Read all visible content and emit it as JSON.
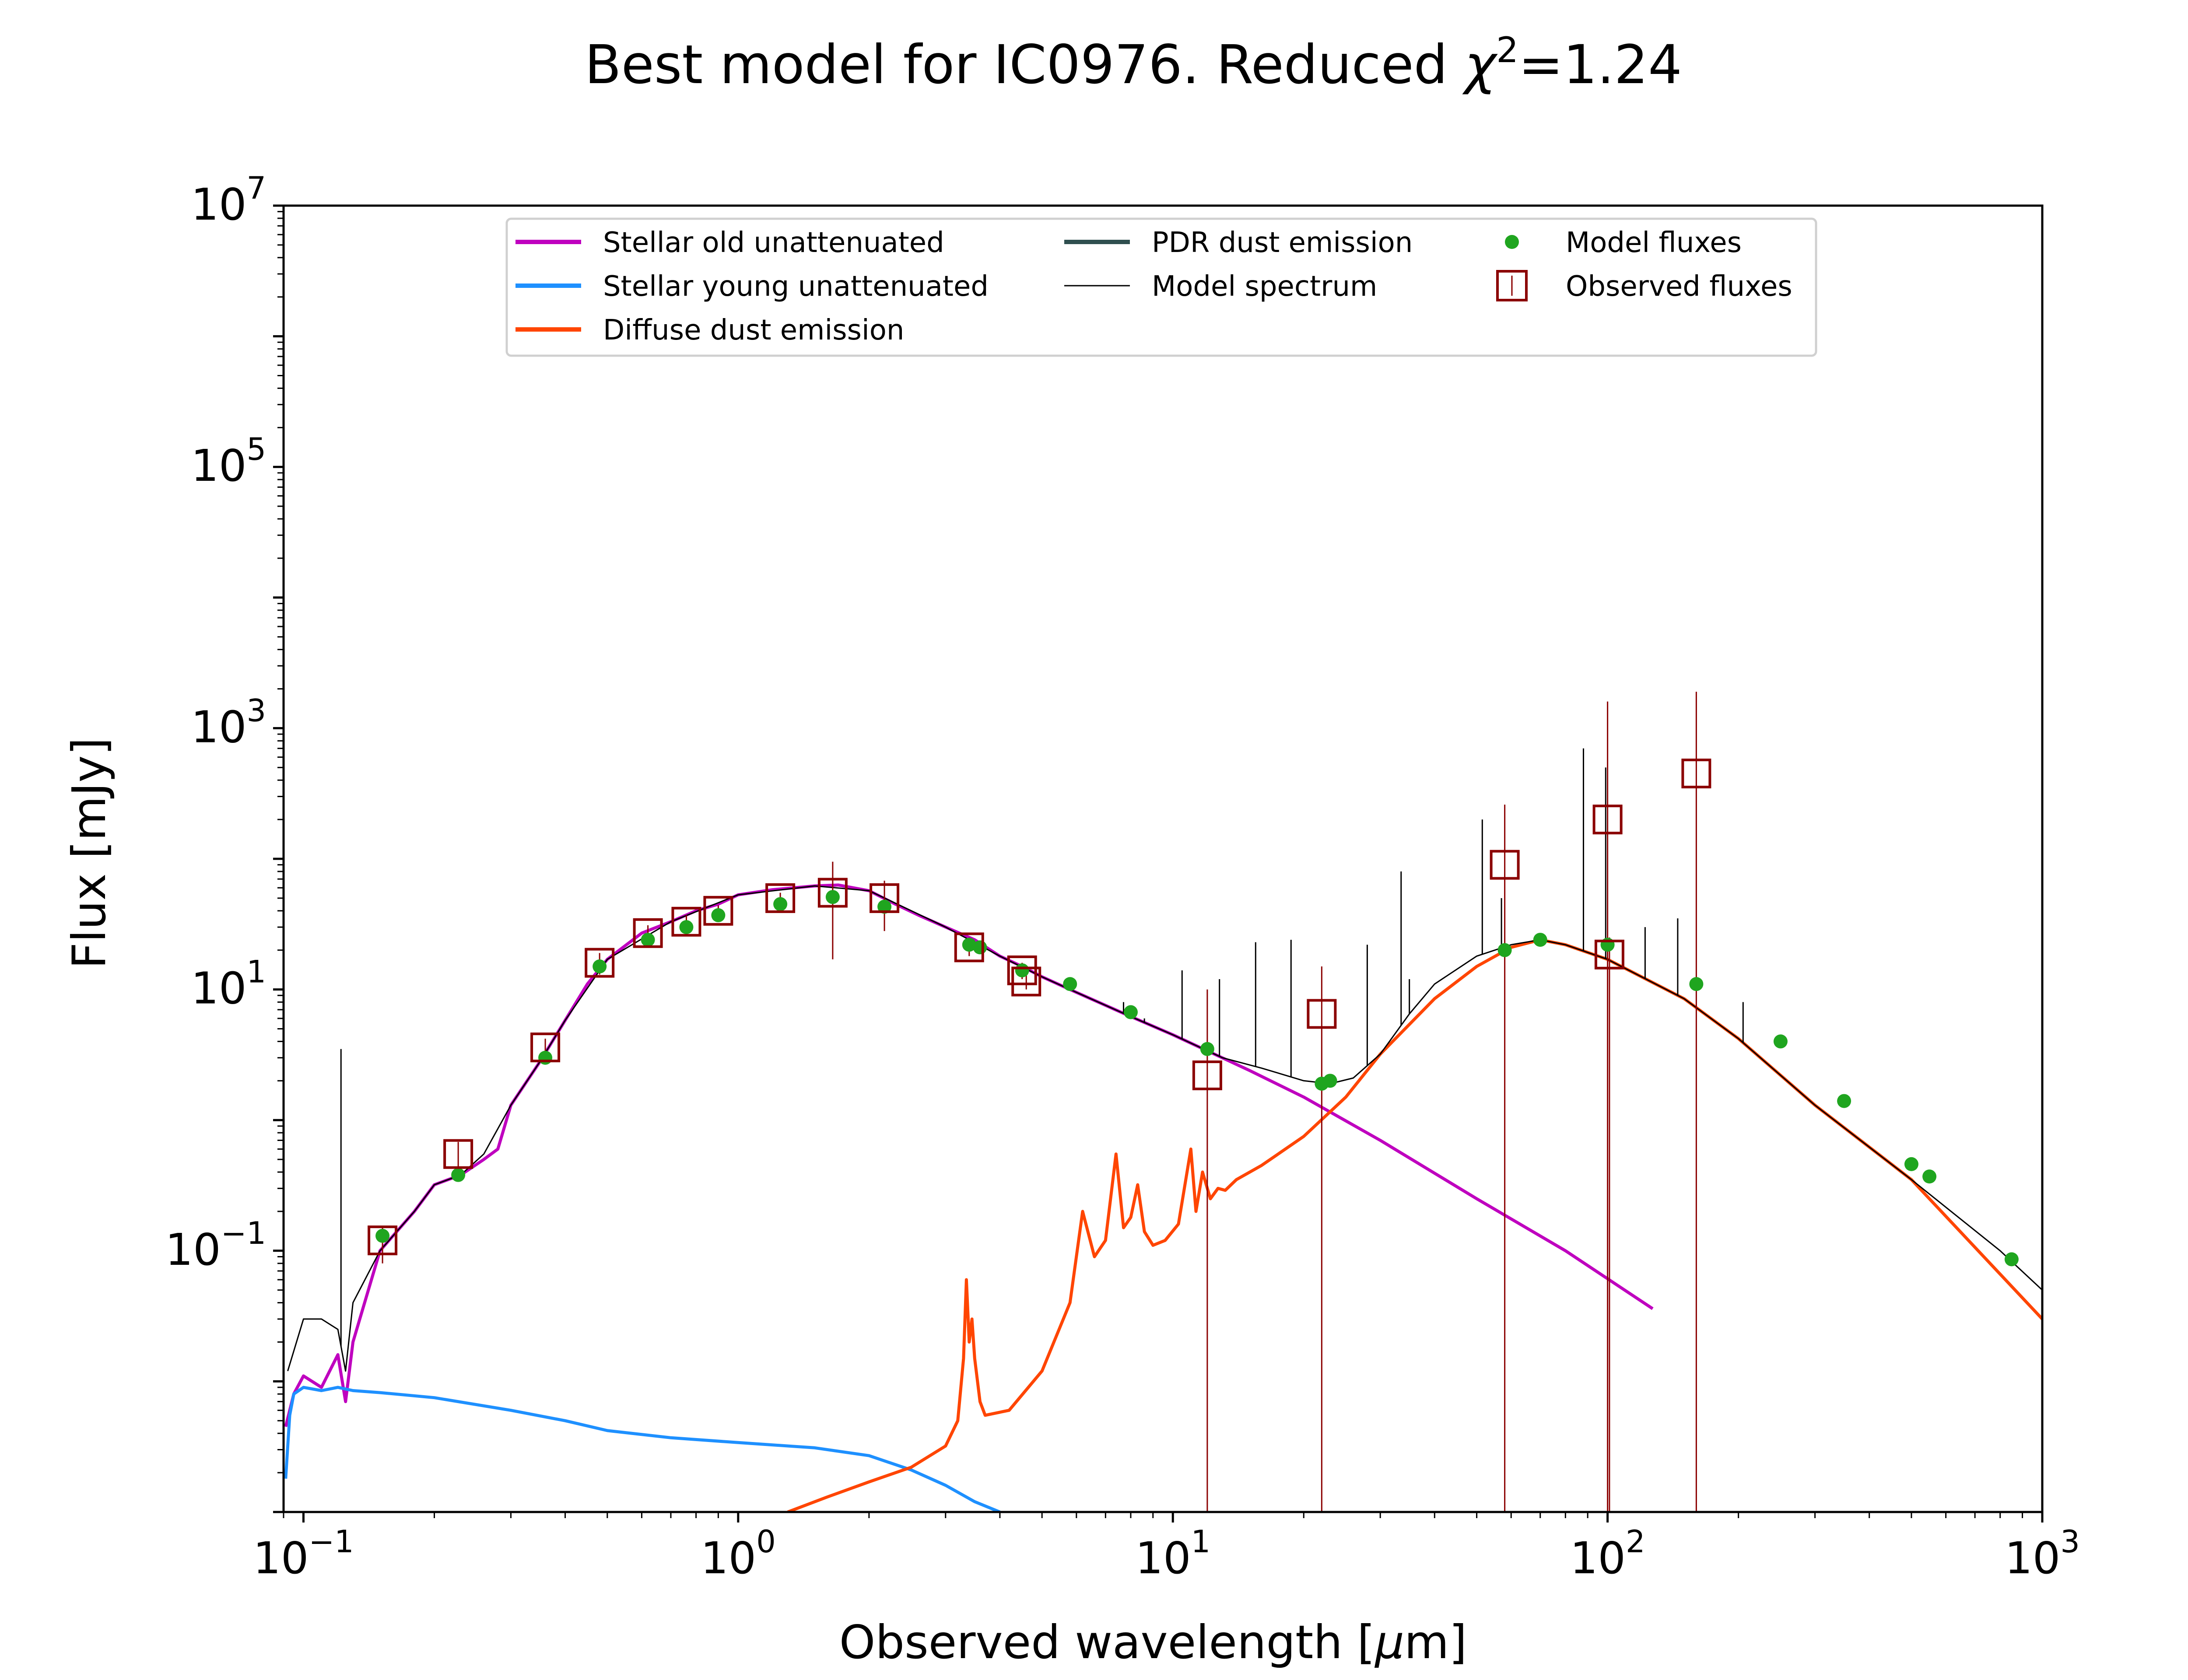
{
  "chart_data": {
    "type": "line",
    "title": "Best model for IC0976. Reduced χ²=1.24",
    "title_parts": {
      "prefix": "Best model for IC0976. Reduced ",
      "chi": "χ",
      "sup": "2",
      "suffix": "=1.24"
    },
    "xlabel": "Observed wavelength [μm]",
    "xlabel_parts": {
      "prefix": "Observed wavelength [",
      "mu": "μ",
      "suffix": "m]"
    },
    "ylabel": "Flux [mJy]",
    "xscale": "log",
    "yscale": "log",
    "xlim": [
      0.09,
      1000
    ],
    "ylim": [
      0.001,
      10000000
    ],
    "x_ticks": [
      {
        "value": 0.1,
        "base": "10",
        "exp": "−1"
      },
      {
        "value": 1,
        "base": "10",
        "exp": "0"
      },
      {
        "value": 10,
        "base": "10",
        "exp": "1"
      },
      {
        "value": 100,
        "base": "10",
        "exp": "2"
      },
      {
        "value": 1000,
        "base": "10",
        "exp": "3"
      }
    ],
    "y_ticks": [
      {
        "value": 0.1,
        "base": "10",
        "exp": "−1"
      },
      {
        "value": 10,
        "base": "10",
        "exp": "1"
      },
      {
        "value": 1000,
        "base": "10",
        "exp": "3"
      },
      {
        "value": 100000,
        "base": "10",
        "exp": "5"
      },
      {
        "value": 10000000,
        "base": "10",
        "exp": "7"
      }
    ],
    "grid": false,
    "legend_position": "top-center",
    "legend": [
      {
        "label": "Stellar old unattenuated",
        "color": "#bf00bf",
        "kind": "line"
      },
      {
        "label": "Stellar young unattenuated",
        "color": "#1e90ff",
        "kind": "line"
      },
      {
        "label": "Diffuse dust emission",
        "color": "#ff4500",
        "kind": "line"
      },
      {
        "label": "PDR dust emission",
        "color": "#2f4f4f",
        "kind": "line"
      },
      {
        "label": "Model spectrum",
        "color": "#000000",
        "kind": "thin-line"
      },
      {
        "label": "Model fluxes",
        "color": "#1fa51f",
        "kind": "dot"
      },
      {
        "label": "Observed fluxes",
        "color": "#8b0000",
        "kind": "square"
      }
    ],
    "series": [
      {
        "name": "Stellar old unattenuated",
        "color": "#bf00bf",
        "x": [
          0.091,
          0.095,
          0.1,
          0.11,
          0.12,
          0.125,
          0.13,
          0.15,
          0.18,
          0.2,
          0.23,
          0.26,
          0.28,
          0.3,
          0.35,
          0.4,
          0.45,
          0.5,
          0.6,
          0.7,
          0.8,
          0.9,
          1.0,
          1.2,
          1.5,
          1.7,
          2.0,
          2.3,
          2.6,
          3.0,
          3.5,
          4.0,
          4.5,
          5.0,
          6.0,
          8.0,
          10,
          15,
          20,
          30,
          50,
          80,
          127
        ],
        "y": [
          0.0045,
          0.008,
          0.011,
          0.009,
          0.016,
          0.007,
          0.02,
          0.1,
          0.2,
          0.32,
          0.38,
          0.5,
          0.6,
          1.3,
          2.8,
          5.8,
          11,
          17,
          27,
          33,
          40,
          45,
          53,
          58,
          62,
          63,
          57,
          45,
          37,
          30,
          24,
          18,
          15,
          12.5,
          9.5,
          6.2,
          4.5,
          2.4,
          1.5,
          0.7,
          0.25,
          0.1,
          0.036
        ]
      },
      {
        "name": "Stellar young unattenuated",
        "color": "#1e90ff",
        "x": [
          0.091,
          0.093,
          0.095,
          0.1,
          0.11,
          0.12,
          0.13,
          0.15,
          0.2,
          0.3,
          0.4,
          0.5,
          0.7,
          1.0,
          1.5,
          2.0,
          2.5,
          3.0,
          3.5,
          4.0
        ],
        "y": [
          0.0018,
          0.0055,
          0.008,
          0.009,
          0.0085,
          0.009,
          0.0085,
          0.0082,
          0.0075,
          0.006,
          0.005,
          0.0042,
          0.0037,
          0.0034,
          0.0031,
          0.0027,
          0.0021,
          0.0016,
          0.0012,
          0.001
        ]
      },
      {
        "name": "Diffuse dust emission",
        "color": "#ff4500",
        "x": [
          1.3,
          1.6,
          2.0,
          2.5,
          3.0,
          3.2,
          3.3,
          3.35,
          3.4,
          3.45,
          3.5,
          3.6,
          3.7,
          4.2,
          5.0,
          5.8,
          6.2,
          6.6,
          7.0,
          7.4,
          7.7,
          8.0,
          8.3,
          8.6,
          9.0,
          9.6,
          10.3,
          11.0,
          11.3,
          11.7,
          12.2,
          12.7,
          13.2,
          14,
          16,
          20,
          25,
          30,
          40,
          50,
          60,
          70,
          80,
          100,
          150,
          200,
          300,
          500,
          1000
        ],
        "y": [
          0.001,
          0.0013,
          0.0017,
          0.0022,
          0.0032,
          0.005,
          0.015,
          0.06,
          0.02,
          0.03,
          0.015,
          0.007,
          0.0055,
          0.006,
          0.012,
          0.04,
          0.2,
          0.09,
          0.12,
          0.55,
          0.15,
          0.18,
          0.32,
          0.14,
          0.11,
          0.12,
          0.16,
          0.6,
          0.2,
          0.4,
          0.25,
          0.3,
          0.29,
          0.35,
          0.45,
          0.75,
          1.5,
          3.2,
          8.5,
          15,
          21,
          24,
          22,
          17,
          8.5,
          4.2,
          1.3,
          0.35,
          0.03
        ]
      },
      {
        "name": "Model spectrum",
        "color": "#000000",
        "x": [
          0.092,
          0.1,
          0.11,
          0.12,
          0.125,
          0.13,
          0.15,
          0.18,
          0.2,
          0.23,
          0.26,
          0.3,
          0.35,
          0.4,
          0.5,
          0.7,
          1.0,
          1.5,
          2.0,
          3.0,
          4.0,
          5.0,
          6.0,
          8.0,
          10,
          13,
          16,
          20,
          23,
          26,
          30,
          35,
          40,
          50,
          60,
          70,
          80,
          100,
          150,
          200,
          300,
          500,
          800,
          1000
        ],
        "y": [
          0.012,
          0.03,
          0.03,
          0.025,
          0.012,
          0.04,
          0.1,
          0.2,
          0.32,
          0.38,
          0.55,
          1.3,
          2.8,
          5.8,
          17,
          33,
          53,
          62,
          57,
          30,
          18,
          12.5,
          9.5,
          6.2,
          4.5,
          3.0,
          2.5,
          2.0,
          1.9,
          2.1,
          3.2,
          6.5,
          11,
          18,
          22,
          24,
          22,
          17,
          8.5,
          4.2,
          1.3,
          0.35,
          0.1,
          0.05
        ]
      },
      {
        "name": "Model fluxes",
        "color": "#1fa51f",
        "x": [
          0.152,
          0.227,
          0.36,
          0.48,
          0.62,
          0.76,
          0.9,
          1.25,
          1.65,
          2.17,
          3.4,
          3.6,
          4.5,
          5.8,
          8.0,
          12.0,
          22.0,
          23.0,
          58.0,
          70.0,
          100.0,
          160.0,
          250.0,
          350.0,
          500.0,
          550.0,
          850.0
        ],
        "y": [
          0.13,
          0.38,
          3.0,
          15,
          24,
          30,
          37,
          45,
          51,
          43,
          22,
          21,
          14,
          11,
          6.7,
          3.5,
          1.9,
          2.0,
          20,
          24,
          22,
          11,
          4.0,
          1.4,
          0.46,
          0.37,
          0.086
        ]
      }
    ],
    "spikes": [
      {
        "x": 0.122,
        "y": 3.5
      },
      {
        "x": 7.7,
        "y": 8
      },
      {
        "x": 8.6,
        "y": 6
      },
      {
        "x": 10.5,
        "y": 14
      },
      {
        "x": 12.8,
        "y": 12
      },
      {
        "x": 15.5,
        "y": 23
      },
      {
        "x": 18.7,
        "y": 24
      },
      {
        "x": 28,
        "y": 22
      },
      {
        "x": 33.5,
        "y": 80
      },
      {
        "x": 35,
        "y": 12
      },
      {
        "x": 51.5,
        "y": 200
      },
      {
        "x": 57,
        "y": 50
      },
      {
        "x": 88,
        "y": 700
      },
      {
        "x": 99,
        "y": 500
      },
      {
        "x": 122,
        "y": 30
      },
      {
        "x": 145,
        "y": 35
      },
      {
        "x": 205,
        "y": 8
      }
    ],
    "observed": [
      {
        "x": 0.152,
        "y": 0.12,
        "lo": 0.08,
        "hi": 0.15
      },
      {
        "x": 0.227,
        "y": 0.55,
        "lo": 0.42,
        "hi": 0.68
      },
      {
        "x": 0.36,
        "y": 3.6,
        "lo": 3.0,
        "hi": 4.2
      },
      {
        "x": 0.48,
        "y": 16,
        "lo": 13,
        "hi": 19
      },
      {
        "x": 0.62,
        "y": 27,
        "lo": 24,
        "hi": 31
      },
      {
        "x": 0.76,
        "y": 33,
        "lo": 29,
        "hi": 37
      },
      {
        "x": 0.9,
        "y": 40,
        "lo": 36,
        "hi": 44
      },
      {
        "x": 1.25,
        "y": 50,
        "lo": 45,
        "hi": 55
      },
      {
        "x": 1.65,
        "y": 55,
        "lo": 17,
        "hi": 95
      },
      {
        "x": 2.17,
        "y": 50,
        "lo": 28,
        "hi": 68
      },
      {
        "x": 3.4,
        "y": 21,
        "lo": 18,
        "hi": 25
      },
      {
        "x": 4.5,
        "y": 14,
        "lo": 12,
        "hi": 16
      },
      {
        "x": 4.6,
        "y": 11.5,
        "lo": 10,
        "hi": 13
      },
      {
        "x": 12.0,
        "y": 2.2,
        "lo": 0.001,
        "hi": 10
      },
      {
        "x": 22.0,
        "y": 6.5,
        "lo": 0.001,
        "hi": 15
      },
      {
        "x": 58.0,
        "y": 90,
        "lo": 0.001,
        "hi": 260
      },
      {
        "x": 100.0,
        "y": 200,
        "lo": 0.001,
        "hi": 1600
      },
      {
        "x": 101.0,
        "y": 18.5,
        "lo": 0.001,
        "hi": 25
      },
      {
        "x": 160.0,
        "y": 450,
        "lo": 0.001,
        "hi": 1900
      }
    ]
  }
}
